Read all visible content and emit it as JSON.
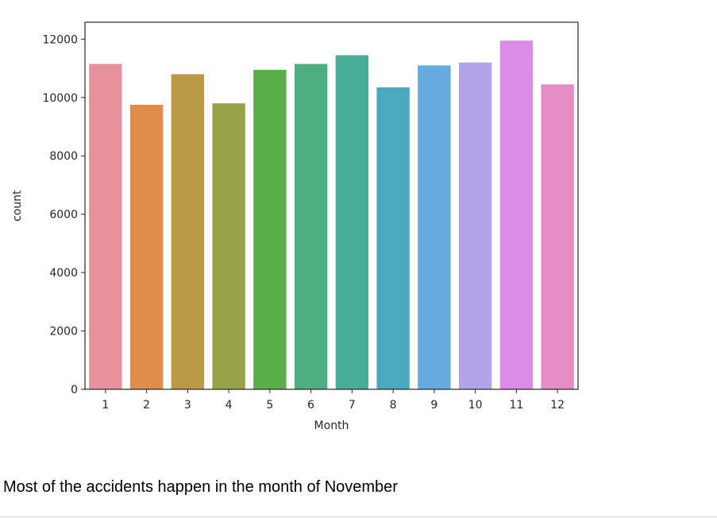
{
  "chart_data": {
    "type": "bar",
    "title": "",
    "xlabel": "Month",
    "ylabel": "count",
    "categories": [
      "1",
      "2",
      "3",
      "4",
      "5",
      "6",
      "7",
      "8",
      "9",
      "10",
      "11",
      "12"
    ],
    "values": [
      11150,
      9750,
      10800,
      9800,
      10950,
      11150,
      11450,
      10350,
      11100,
      11200,
      11950,
      10450
    ],
    "colors": [
      "#e8909b",
      "#df8c4c",
      "#b99a48",
      "#97a346",
      "#5aac48",
      "#4daf80",
      "#47ae95",
      "#4aa8bf",
      "#64abe0",
      "#b3a4e8",
      "#db8ce6",
      "#e68cc4"
    ],
    "yticks": [
      0,
      2000,
      4000,
      6000,
      8000,
      10000,
      12000
    ],
    "ylim": [
      0,
      12580
    ],
    "grid": false,
    "legend": "none"
  },
  "caption": "Most of the accidents happen in the month of November"
}
